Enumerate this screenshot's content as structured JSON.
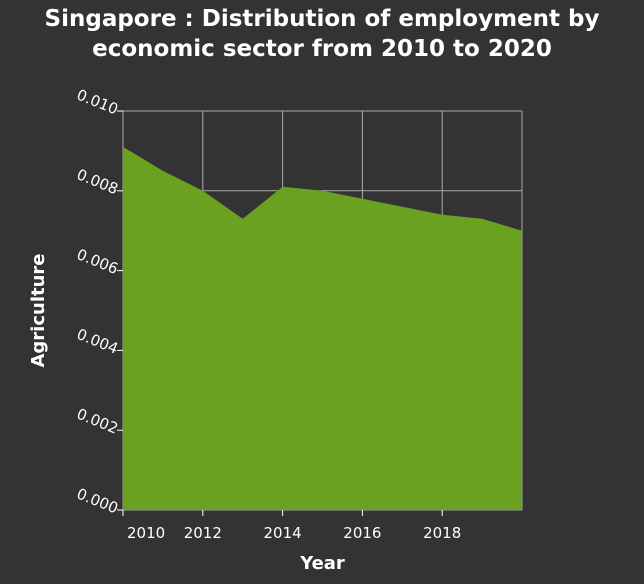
{
  "chart_data": {
    "type": "area",
    "title_line1": "Singapore : Distribution of employment by",
    "title_line2": "economic sector from 2010 to 2020",
    "xlabel": "Year",
    "ylabel": "Agriculture",
    "x": [
      2010,
      2011,
      2012,
      2013,
      2014,
      2015,
      2016,
      2017,
      2018,
      2019,
      2020
    ],
    "series": [
      {
        "values": [
          0.0091,
          0.0085,
          0.008,
          0.0073,
          0.0081,
          0.008,
          0.0078,
          0.0076,
          0.0074,
          0.0073,
          0.007
        ]
      }
    ],
    "xlim": [
      2010,
      2020
    ],
    "ylim": [
      0,
      0.01
    ],
    "xticks": [
      2010,
      2012,
      2014,
      2016,
      2018
    ],
    "xtick_labels": [
      "2010",
      "2012",
      "2014",
      "2016",
      "2018"
    ],
    "yticks": [
      0,
      0.002,
      0.004,
      0.006,
      0.008,
      0.01
    ],
    "ytick_labels": [
      "0.000",
      "0.002",
      "0.004",
      "0.006",
      "0.008",
      "0.010"
    ],
    "grid": true,
    "colors": {
      "background": "#333333",
      "fill": "#6aa121",
      "grid": "#aaaaaa",
      "text": "#ffffff"
    }
  }
}
